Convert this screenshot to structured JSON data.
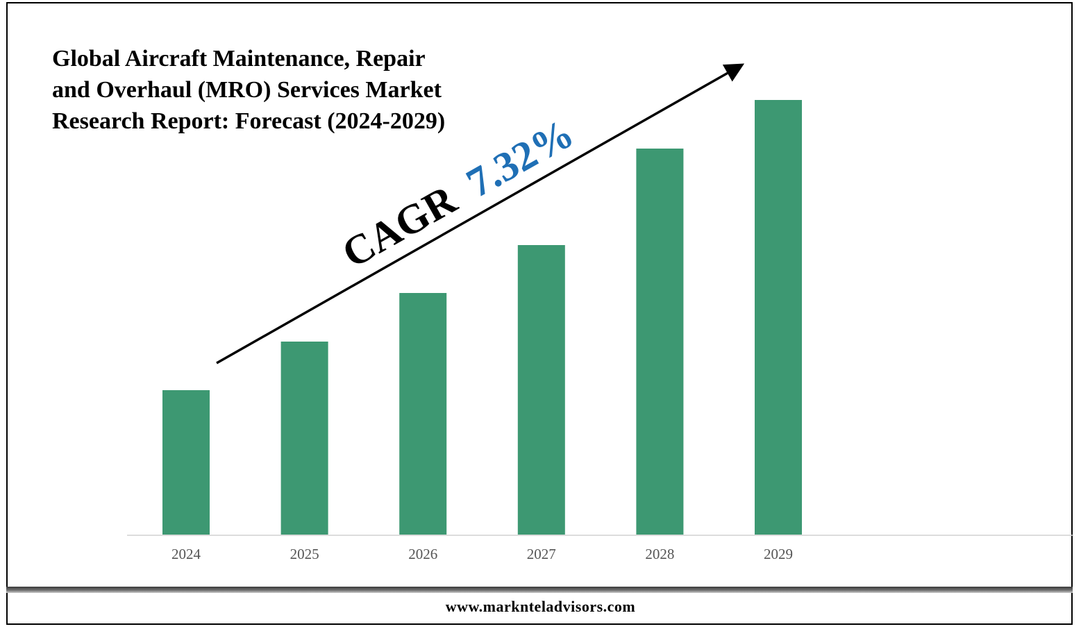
{
  "title_lines": [
    "Global Aircraft Maintenance, Repair",
    "and Overhaul (MRO) Services Market",
    "Research Report: Forecast (2024-2029)"
  ],
  "footer": {
    "url": "www.marknteladvisors.com"
  },
  "annotation": {
    "prefix": "CAGR",
    "value": "7.32%",
    "prefix_color": "#000000",
    "value_color": "#1f6fb5"
  },
  "colors": {
    "bar": "#3d9872",
    "axis": "#d0d0d0",
    "arrow": "#000000"
  },
  "chart_data": {
    "type": "bar",
    "categories": [
      "2024",
      "2025",
      "2026",
      "2027",
      "2028",
      "2029"
    ],
    "values": [
      208,
      278,
      348,
      417,
      556,
      626
    ],
    "value_note": "no values printed; relative bar heights only",
    "title": "Global Aircraft Maintenance, Repair and Overhaul (MRO) Services Market Research Report: Forecast (2024-2029)",
    "xlabel": "",
    "ylabel": "",
    "ylim": [
      0,
      700
    ],
    "grid": false,
    "legend": "none",
    "annotations": [
      "CAGR 7.32%"
    ]
  }
}
